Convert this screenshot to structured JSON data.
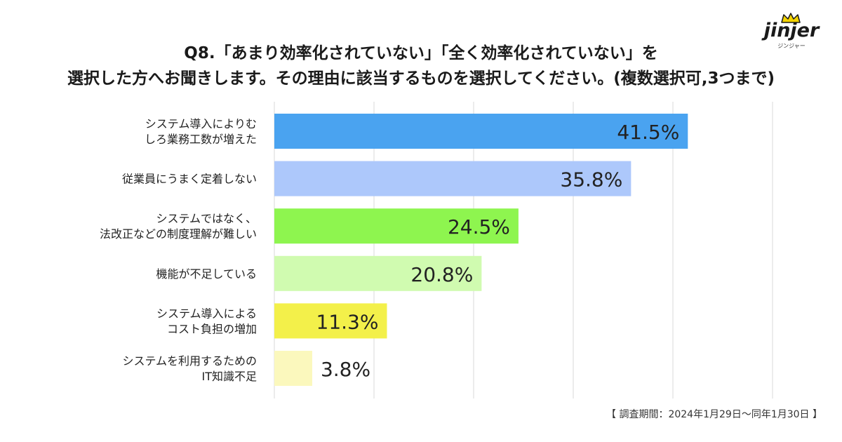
{
  "title_lines": [
    "Q8.「あまり効率化されていない」「全く効率化されていない」を",
    "選択した方へお聞きします。その理由に該当するものを選択してください。(複数選択可,3つまで)"
  ],
  "logo": {
    "text": "jinjer",
    "subtext": "ジンジャー",
    "icon": "crown-icon"
  },
  "footnote": "【 調査期間：2024年1月29日〜同年1月30日 】",
  "chart_data": {
    "type": "bar",
    "orientation": "horizontal",
    "xlim": [
      0,
      50
    ],
    "grid": true,
    "categories": [
      [
        "システム導入によりむ",
        "しろ業務工数が増えた"
      ],
      [
        "従業員にうまく定着しない"
      ],
      [
        "システムではなく、",
        "法改正などの制度理解が難しい"
      ],
      [
        "機能が不足している"
      ],
      [
        "システム導入による",
        "コスト負担の増加"
      ],
      [
        "システムを利用するための",
        "IT知識不足"
      ]
    ],
    "values": [
      41.5,
      35.8,
      24.5,
      20.8,
      11.3,
      3.8
    ],
    "value_labels": [
      "41.5%",
      "35.8%",
      "24.5%",
      "20.8%",
      "11.3%",
      "3.8%"
    ],
    "colors": [
      "#4aa3f0",
      "#adc8fb",
      "#8ef54f",
      "#d0fbb0",
      "#f3f04a",
      "#fbf8bd"
    ]
  }
}
